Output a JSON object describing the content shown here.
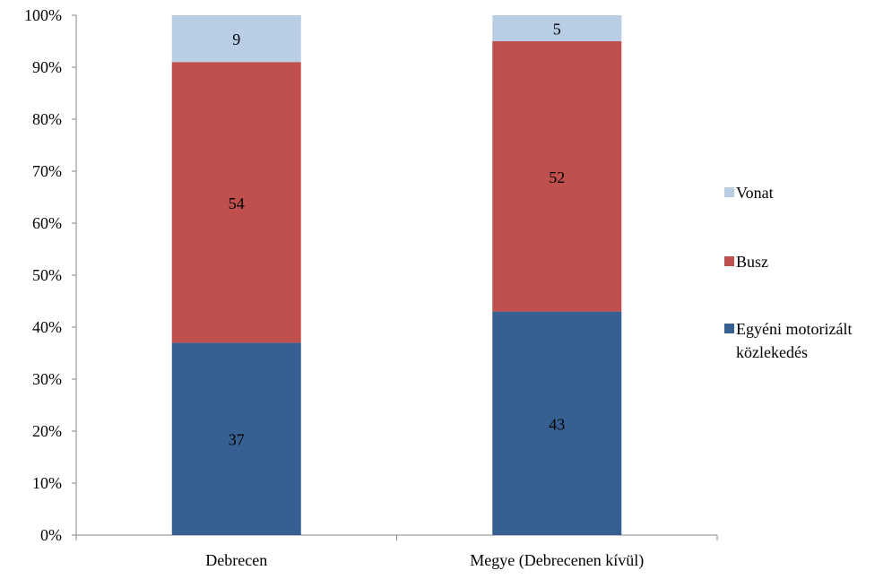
{
  "chart_data": {
    "type": "bar",
    "stacked": true,
    "normalized": true,
    "categories": [
      "Debrecen",
      "Megye (Debrecenen kívül)"
    ],
    "series": [
      {
        "name": "Egyéni motorizált közlekedés",
        "values": [
          37,
          43
        ],
        "color": "#376092"
      },
      {
        "name": "Busz",
        "values": [
          54,
          52
        ],
        "color": "#C0504D"
      },
      {
        "name": "Vonat",
        "values": [
          9,
          5
        ],
        "color": "#B9CDE5"
      }
    ],
    "ylim": [
      0,
      100
    ],
    "y_ticks": [
      "0%",
      "10%",
      "20%",
      "30%",
      "40%",
      "50%",
      "60%",
      "70%",
      "80%",
      "90%",
      "100%"
    ],
    "grid": false,
    "legend_position": "right",
    "legend_order": [
      "Vonat",
      "Busz",
      "Egyéni motorizált közlekedés"
    ],
    "data_labels": true,
    "title": "",
    "xlabel": "",
    "ylabel": ""
  }
}
